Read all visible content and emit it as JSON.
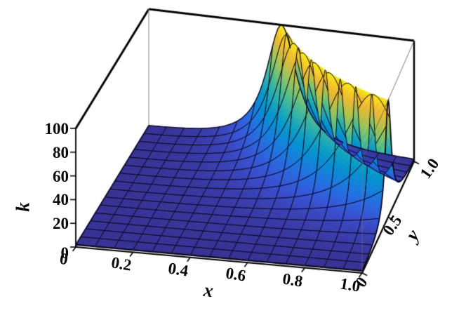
{
  "figure": {
    "background": "#ffffff",
    "box_color": "#000000",
    "thin_edge_color": "#8a8a8a"
  },
  "chart_data": {
    "type": "surface3d",
    "title": "",
    "xlabel": "x",
    "ylabel": "y",
    "zlabel": "k",
    "x_range": [
      0,
      1
    ],
    "y_range": [
      0,
      1
    ],
    "z_range": [
      0,
      100
    ],
    "x_ticks": [
      "0",
      "0.2",
      "0.4",
      "0.6",
      "0.8",
      "1.0"
    ],
    "y_ticks": [
      "0",
      "0.5",
      "1.0"
    ],
    "z_ticks": [
      "0",
      "20",
      "40",
      "60",
      "80",
      "100"
    ],
    "surface": {
      "formula": "k(x,y) = 100*gamma^2 / ((x*y - 0.5)^2 + gamma^2)",
      "ridge_location": "x*y = 0.5",
      "gamma": 0.07,
      "peak_value": 100,
      "baseline_value": 2,
      "mesh_divisions": 15,
      "mesh_line_color": "#0a061e"
    },
    "colormap": {
      "name": "parula-like",
      "stops": [
        [
          0.0,
          "#352a87"
        ],
        [
          0.06,
          "#383dac"
        ],
        [
          0.12,
          "#384ecd"
        ],
        [
          0.18,
          "#2e60db"
        ],
        [
          0.24,
          "#2170e0"
        ],
        [
          0.3,
          "#147fdb"
        ],
        [
          0.36,
          "#078cd3"
        ],
        [
          0.42,
          "#0598ca"
        ],
        [
          0.48,
          "#14a3bd"
        ],
        [
          0.54,
          "#2bafae"
        ],
        [
          0.6,
          "#43b896"
        ],
        [
          0.66,
          "#65c07e"
        ],
        [
          0.72,
          "#8bc564"
        ],
        [
          0.78,
          "#b2c24c"
        ],
        [
          0.84,
          "#d6bc3c"
        ],
        [
          0.9,
          "#f2b92f"
        ],
        [
          0.955,
          "#f7d327"
        ],
        [
          1.0,
          "#f8ec14"
        ]
      ]
    }
  }
}
